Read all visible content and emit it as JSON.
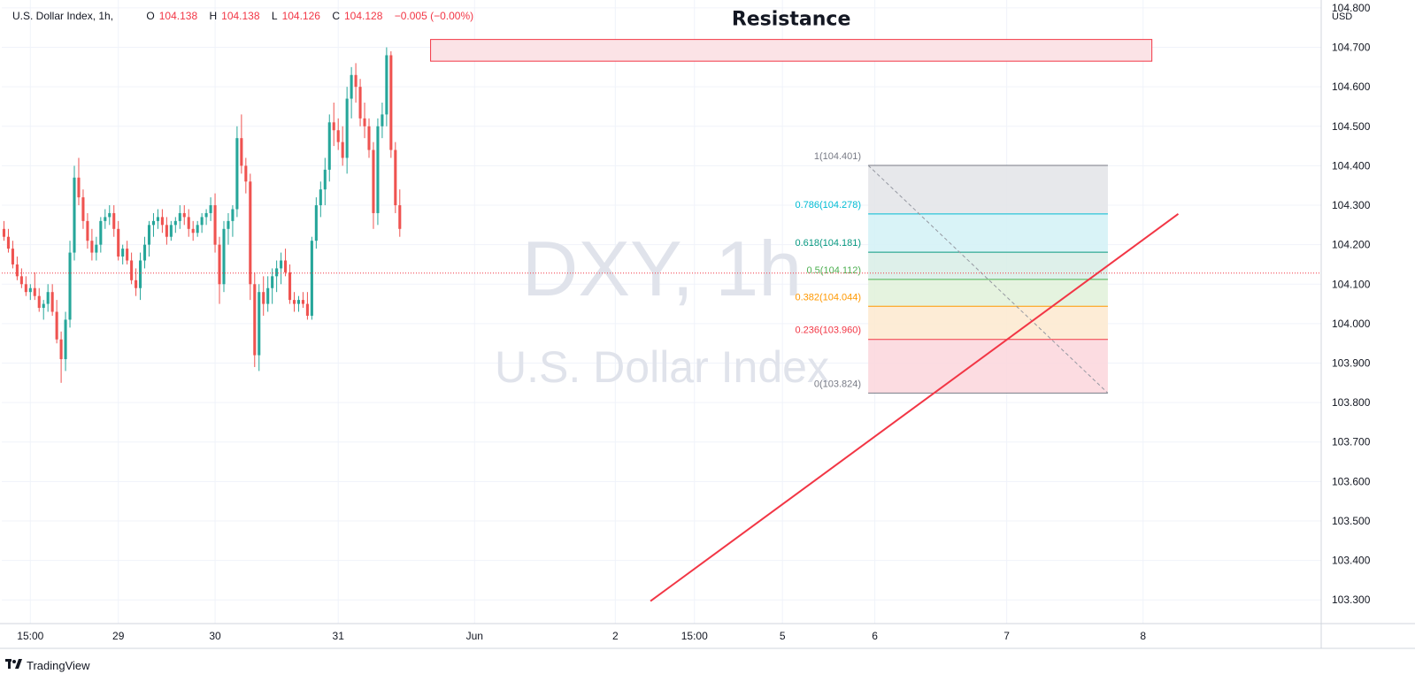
{
  "header": {
    "symbol": "U.S. Dollar Index, 1h,",
    "o_label": "O",
    "o_value": "104.138",
    "h_label": "H",
    "h_value": "104.138",
    "l_label": "L",
    "l_value": "104.126",
    "c_label": "C",
    "c_value": "104.128",
    "change": "−0.005 (−0.00%)"
  },
  "brand": {
    "name": "TradingView",
    "icon": "tradingview-logo-icon"
  },
  "colors": {
    "up": "#26a69a",
    "down": "#ef5350",
    "trendline": "#f23645",
    "resistance_fill": "#fbe3e6",
    "resistance_stroke": "#f23645",
    "watermark": "#e0e3eb",
    "grid": "#f0f3fa",
    "price_line": "#f23645"
  },
  "chart_data": {
    "type": "candlestick",
    "title": "DXY, 1h",
    "subtitle": "U.S. Dollar Index",
    "currency": "USD",
    "ylim": [
      103.24,
      104.82
    ],
    "y_ticks": [
      "104.800",
      "104.700",
      "104.600",
      "104.500",
      "104.400",
      "104.300",
      "104.200",
      "104.100",
      "104.000",
      "103.900",
      "103.800",
      "103.700",
      "103.600",
      "103.500",
      "103.400",
      "103.300"
    ],
    "x_ticks": [
      {
        "label": "15:00",
        "bar": 6
      },
      {
        "label": "29",
        "bar": 26
      },
      {
        "label": "30",
        "bar": 48
      },
      {
        "label": "31",
        "bar": 76
      },
      {
        "label": "Jun",
        "bar": 107
      },
      {
        "label": "2",
        "bar": 139
      },
      {
        "label": "15:00",
        "bar": 157
      },
      {
        "label": "5",
        "bar": 177
      },
      {
        "label": "6",
        "bar": 198
      },
      {
        "label": "7",
        "bar": 228
      },
      {
        "label": "8",
        "bar": 259
      }
    ],
    "bar_count_visible": 300,
    "last_price": 104.128,
    "ohlc": [
      [
        104.24,
        104.26,
        104.21,
        104.22
      ],
      [
        104.22,
        104.24,
        104.18,
        104.19
      ],
      [
        104.19,
        104.21,
        104.14,
        104.15
      ],
      [
        104.15,
        104.17,
        104.11,
        104.12
      ],
      [
        104.12,
        104.14,
        104.09,
        104.1
      ],
      [
        104.1,
        104.12,
        104.07,
        104.08
      ],
      [
        104.08,
        104.1,
        104.06,
        104.09
      ],
      [
        104.09,
        104.13,
        104.06,
        104.07
      ],
      [
        104.07,
        104.09,
        104.03,
        104.04
      ],
      [
        104.04,
        104.06,
        104.01,
        104.05
      ],
      [
        104.05,
        104.1,
        104.03,
        104.08
      ],
      [
        104.08,
        104.1,
        104.02,
        104.03
      ],
      [
        104.03,
        104.06,
        103.95,
        103.96
      ],
      [
        103.96,
        103.98,
        103.85,
        103.91
      ],
      [
        103.91,
        104.03,
        103.88,
        104.01
      ],
      [
        104.01,
        104.21,
        103.99,
        104.18
      ],
      [
        104.18,
        104.4,
        104.16,
        104.37
      ],
      [
        104.37,
        104.42,
        104.3,
        104.32
      ],
      [
        104.32,
        104.34,
        104.24,
        104.26
      ],
      [
        104.26,
        104.28,
        104.19,
        104.21
      ],
      [
        104.21,
        104.24,
        104.16,
        104.18
      ],
      [
        104.18,
        104.22,
        104.16,
        104.2
      ],
      [
        104.2,
        104.27,
        104.18,
        104.26
      ],
      [
        104.26,
        104.29,
        104.24,
        104.27
      ],
      [
        104.27,
        104.3,
        104.25,
        104.28
      ],
      [
        104.28,
        104.3,
        104.22,
        104.24
      ],
      [
        104.24,
        104.26,
        104.16,
        104.17
      ],
      [
        104.17,
        104.2,
        104.15,
        104.19
      ],
      [
        104.19,
        104.21,
        104.15,
        104.16
      ],
      [
        104.16,
        104.18,
        104.1,
        104.11
      ],
      [
        104.11,
        104.14,
        104.07,
        104.09
      ],
      [
        104.09,
        104.18,
        104.06,
        104.16
      ],
      [
        104.16,
        104.22,
        104.14,
        104.2
      ],
      [
        104.2,
        104.26,
        104.17,
        104.25
      ],
      [
        104.25,
        104.28,
        104.22,
        104.26
      ],
      [
        104.26,
        104.29,
        104.24,
        104.27
      ],
      [
        104.27,
        104.29,
        104.23,
        104.25
      ],
      [
        104.25,
        104.27,
        104.2,
        104.22
      ],
      [
        104.22,
        104.26,
        104.21,
        104.25
      ],
      [
        104.25,
        104.27,
        104.23,
        104.26
      ],
      [
        104.26,
        104.3,
        104.24,
        104.28
      ],
      [
        104.28,
        104.3,
        104.25,
        104.27
      ],
      [
        104.27,
        104.29,
        104.22,
        104.24
      ],
      [
        104.24,
        104.26,
        104.21,
        104.23
      ],
      [
        104.23,
        104.26,
        104.22,
        104.25
      ],
      [
        104.25,
        104.28,
        104.23,
        104.27
      ],
      [
        104.27,
        104.29,
        104.25,
        104.28
      ],
      [
        104.28,
        104.32,
        104.26,
        104.3
      ],
      [
        104.3,
        104.33,
        104.18,
        104.2
      ],
      [
        104.2,
        104.22,
        104.05,
        104.1
      ],
      [
        104.1,
        104.26,
        104.08,
        104.24
      ],
      [
        104.24,
        104.28,
        104.2,
        104.26
      ],
      [
        104.26,
        104.3,
        104.22,
        104.29
      ],
      [
        104.29,
        104.5,
        104.27,
        104.47
      ],
      [
        104.47,
        104.53,
        104.38,
        104.4
      ],
      [
        104.4,
        104.42,
        104.33,
        104.36
      ],
      [
        104.36,
        104.38,
        104.06,
        104.1
      ],
      [
        104.1,
        104.13,
        103.89,
        103.92
      ],
      [
        103.92,
        104.1,
        103.88,
        104.08
      ],
      [
        104.08,
        104.12,
        104.02,
        104.05
      ],
      [
        104.05,
        104.12,
        104.03,
        104.09
      ],
      [
        104.09,
        104.14,
        104.05,
        104.12
      ],
      [
        104.12,
        104.16,
        104.08,
        104.14
      ],
      [
        104.14,
        104.18,
        104.1,
        104.16
      ],
      [
        104.16,
        104.19,
        104.12,
        104.13
      ],
      [
        104.13,
        104.15,
        104.05,
        104.06
      ],
      [
        104.06,
        104.08,
        104.03,
        104.05
      ],
      [
        104.05,
        104.07,
        104.03,
        104.06
      ],
      [
        104.06,
        104.08,
        104.04,
        104.05
      ],
      [
        104.05,
        104.08,
        104.01,
        104.02
      ],
      [
        104.02,
        104.22,
        104.01,
        104.21
      ],
      [
        104.21,
        104.32,
        104.19,
        104.3
      ],
      [
        104.3,
        104.36,
        104.27,
        104.34
      ],
      [
        104.34,
        104.42,
        104.3,
        104.39
      ],
      [
        104.39,
        104.53,
        104.36,
        104.51
      ],
      [
        104.51,
        104.56,
        104.45,
        104.49
      ],
      [
        104.49,
        104.52,
        104.44,
        104.46
      ],
      [
        104.46,
        104.5,
        104.4,
        104.42
      ],
      [
        104.42,
        104.6,
        104.38,
        104.57
      ],
      [
        104.57,
        104.65,
        104.52,
        104.63
      ],
      [
        104.63,
        104.66,
        104.56,
        104.6
      ],
      [
        104.6,
        104.62,
        104.5,
        104.52
      ],
      [
        104.52,
        104.56,
        104.47,
        104.5
      ],
      [
        104.5,
        104.52,
        104.42,
        104.44
      ],
      [
        104.44,
        104.46,
        104.24,
        104.28
      ],
      [
        104.28,
        104.52,
        104.25,
        104.5
      ],
      [
        104.5,
        104.56,
        104.47,
        104.53
      ],
      [
        104.53,
        104.7,
        104.5,
        104.68
      ],
      [
        104.68,
        104.69,
        104.42,
        104.44
      ],
      [
        104.44,
        104.46,
        104.28,
        104.3
      ],
      [
        104.3,
        104.34,
        104.22,
        104.24
      ]
    ],
    "fibonacci": {
      "levels": [
        {
          "ratio_label": "1",
          "price": 104.401,
          "label": "1(104.401)",
          "line_color": "#787b86",
          "fill": "#e3e4e8"
        },
        {
          "ratio_label": "0.786",
          "price": 104.278,
          "label": "0.786(104.278)",
          "line_color": "#00bcd4",
          "fill": "#d2f1f6"
        },
        {
          "ratio_label": "0.618",
          "price": 104.181,
          "label": "0.618(104.181)",
          "line_color": "#089981",
          "fill": "#d8ede6"
        },
        {
          "ratio_label": "0.5",
          "price": 104.112,
          "label": "0.5(104.112)",
          "line_color": "#4caf50",
          "fill": "#e0f1d9"
        },
        {
          "ratio_label": "0.382",
          "price": 104.044,
          "label": "0.382(104.044)",
          "line_color": "#ff9800",
          "fill": "#fde9cf"
        },
        {
          "ratio_label": "0.236",
          "price": 103.96,
          "label": "0.236(103.960)",
          "line_color": "#f23645",
          "fill": "#fbd6dc"
        },
        {
          "ratio_label": "0",
          "price": 103.824,
          "label": "0(103.824)",
          "line_color": "#787b86",
          "fill": ""
        }
      ],
      "bar_start": 197,
      "bar_end": 251
    },
    "annotations": [
      {
        "type": "rectangle",
        "label": "Resistance",
        "price_low": 104.665,
        "price_high": 104.72,
        "bar_start": 97,
        "bar_end": 261
      },
      {
        "type": "trendline",
        "from": {
          "bar": 147,
          "price": 103.297
        },
        "to": {
          "bar": 267,
          "price": 104.278
        }
      }
    ]
  }
}
